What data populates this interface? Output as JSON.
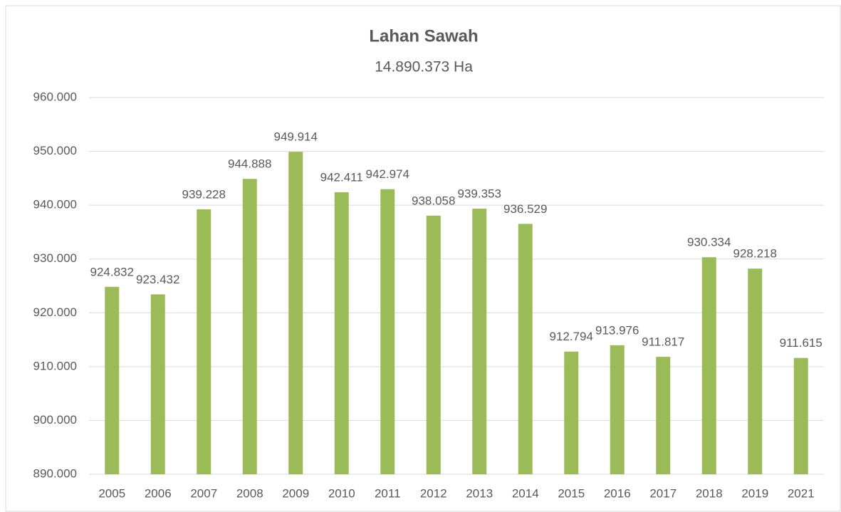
{
  "chart_data": {
    "type": "bar",
    "title": "Lahan Sawah",
    "subtitle": "14.890.373 Ha",
    "categories": [
      "2005",
      "2006",
      "2007",
      "2008",
      "2009",
      "2010",
      "2011",
      "2012",
      "2013",
      "2014",
      "2015",
      "2016",
      "2017",
      "2018",
      "2019",
      "2021"
    ],
    "values": [
      924832,
      923432,
      939228,
      944888,
      949914,
      942411,
      942974,
      938058,
      939353,
      936529,
      912794,
      913976,
      911817,
      930334,
      928218,
      911615
    ],
    "value_labels": [
      "924.832",
      "923.432",
      "939.228",
      "944.888",
      "949.914",
      "942.411",
      "942.974",
      "938.058",
      "939.353",
      "936.529",
      "912.794",
      "913.976",
      "911.817",
      "930.334",
      "928.218",
      "911.615"
    ],
    "color": "#9bbb59",
    "ylim": [
      890000,
      960000
    ],
    "yticks": [
      {
        "value": 890000,
        "label": "890.000"
      },
      {
        "value": 900000,
        "label": "900.000"
      },
      {
        "value": 910000,
        "label": "910.000"
      },
      {
        "value": 920000,
        "label": "920.000"
      },
      {
        "value": 930000,
        "label": "930.000"
      },
      {
        "value": 940000,
        "label": "940.000"
      },
      {
        "value": 950000,
        "label": "950.000"
      },
      {
        "value": 960000,
        "label": "960.000"
      }
    ],
    "grid": true
  }
}
